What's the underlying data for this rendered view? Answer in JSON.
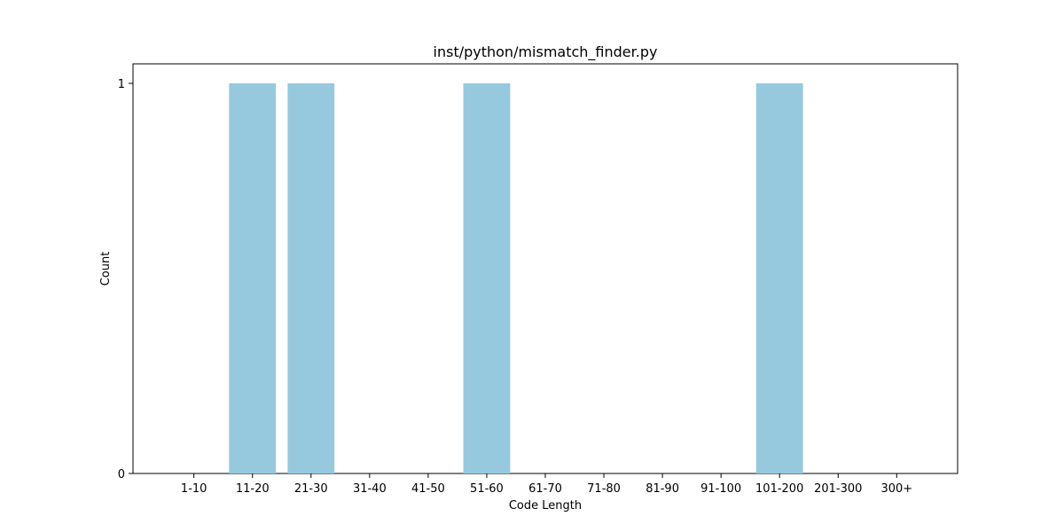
{
  "chart_data": {
    "type": "bar",
    "title": "inst/python/mismatch_finder.py",
    "xlabel": "Code Length",
    "ylabel": "Count",
    "categories": [
      "1-10",
      "11-20",
      "21-30",
      "31-40",
      "41-50",
      "51-60",
      "61-70",
      "71-80",
      "81-90",
      "91-100",
      "101-200",
      "201-300",
      "300+"
    ],
    "values": [
      0,
      1,
      1,
      0,
      0,
      1,
      0,
      0,
      0,
      0,
      1,
      0,
      0
    ],
    "ylim": [
      0,
      1.05
    ],
    "yticks": [
      0,
      1
    ],
    "grid": false,
    "bar_color": "#96c9de"
  }
}
